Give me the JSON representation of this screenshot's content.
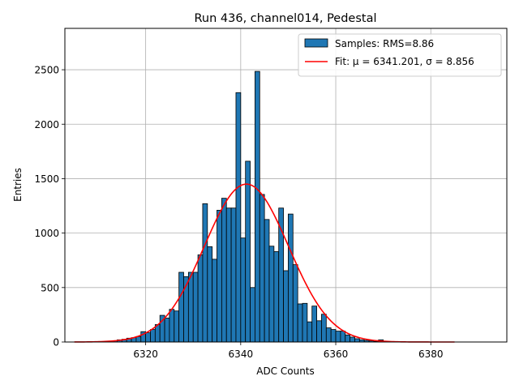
{
  "chart_data": {
    "type": "bar",
    "title": "Run 436, channel014, Pedestal",
    "xlabel": "ADC Counts",
    "ylabel": "Entries",
    "xlim": [
      6303,
      6396
    ],
    "ylim": [
      0,
      2880
    ],
    "xticks": [
      6320,
      6340,
      6360,
      6380
    ],
    "yticks": [
      0,
      500,
      1000,
      1500,
      2000,
      2500
    ],
    "grid": true,
    "legend": {
      "placement": "top-right",
      "entries": [
        {
          "label": "Samples: RMS=8.86",
          "kind": "patch",
          "color": "#1f77b4"
        },
        {
          "label": "Fit: μ = 6341.201, σ = 8.856",
          "kind": "line",
          "color": "#ff0000"
        }
      ]
    },
    "histogram": {
      "name": "Samples: RMS=8.86",
      "bin_width": 1,
      "color": "#1f77b4",
      "edge_color": "#000000",
      "bins": [
        [
          6313,
          12
        ],
        [
          6314,
          20
        ],
        [
          6315,
          25
        ],
        [
          6316,
          35
        ],
        [
          6317,
          40
        ],
        [
          6318,
          50
        ],
        [
          6319,
          95
        ],
        [
          6320,
          85
        ],
        [
          6321,
          115
        ],
        [
          6322,
          160
        ],
        [
          6323,
          245
        ],
        [
          6324,
          220
        ],
        [
          6325,
          300
        ],
        [
          6326,
          285
        ],
        [
          6327,
          640
        ],
        [
          6328,
          600
        ],
        [
          6329,
          640
        ],
        [
          6330,
          640
        ],
        [
          6331,
          800
        ],
        [
          6332,
          1270
        ],
        [
          6333,
          875
        ],
        [
          6334,
          760
        ],
        [
          6335,
          1210
        ],
        [
          6336,
          1320
        ],
        [
          6337,
          1230
        ],
        [
          6338,
          1230
        ],
        [
          6339,
          2290
        ],
        [
          6340,
          955
        ],
        [
          6341,
          1660
        ],
        [
          6342,
          500
        ],
        [
          6343,
          2485
        ],
        [
          6344,
          1355
        ],
        [
          6345,
          1125
        ],
        [
          6346,
          880
        ],
        [
          6347,
          830
        ],
        [
          6348,
          1230
        ],
        [
          6349,
          655
        ],
        [
          6350,
          1175
        ],
        [
          6351,
          710
        ],
        [
          6352,
          350
        ],
        [
          6353,
          355
        ],
        [
          6354,
          185
        ],
        [
          6355,
          330
        ],
        [
          6356,
          195
        ],
        [
          6357,
          255
        ],
        [
          6358,
          130
        ],
        [
          6359,
          115
        ],
        [
          6360,
          100
        ],
        [
          6361,
          100
        ],
        [
          6362,
          65
        ],
        [
          6363,
          45
        ],
        [
          6364,
          30
        ],
        [
          6365,
          20
        ],
        [
          6366,
          15
        ],
        [
          6367,
          10
        ],
        [
          6368,
          5
        ],
        [
          6369,
          20
        ],
        [
          6370,
          3
        ]
      ]
    },
    "fit": {
      "name": "Fit: μ = 6341.201, σ = 8.856",
      "function": "gaussian",
      "mu": 6341.201,
      "sigma": 8.856,
      "amplitude": 1450,
      "x_range": [
        6305,
        6385
      ],
      "color": "#ff0000"
    }
  }
}
